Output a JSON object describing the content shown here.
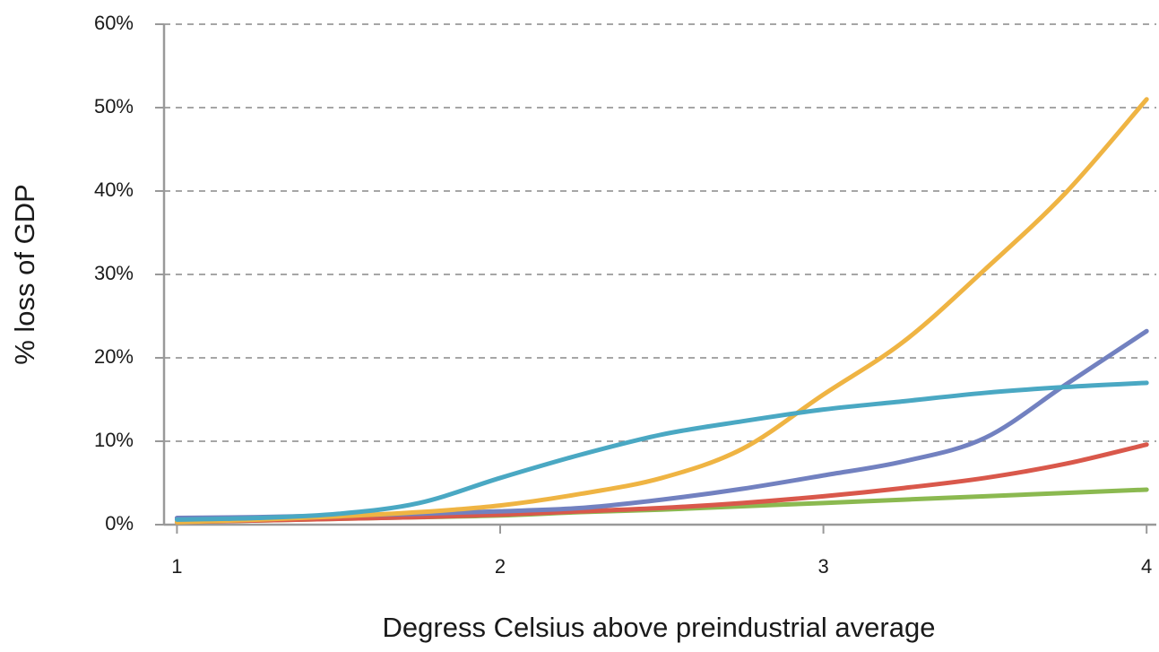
{
  "chart_data": {
    "type": "line",
    "x_label": "Degress Celsius above preindustrial average",
    "y_label": "% loss of GDP",
    "x": [
      1,
      1.25,
      1.5,
      1.75,
      2,
      2.25,
      2.5,
      2.75,
      3,
      3.25,
      3.5,
      3.75,
      4
    ],
    "series": [
      {
        "color": "#8bb950",
        "values": [
          0.3,
          0.5,
          0.7,
          0.9,
          1.1,
          1.5,
          1.8,
          2.2,
          2.6,
          3.0,
          3.4,
          3.8,
          4.2
        ]
      },
      {
        "color": "#d9584b",
        "values": [
          0.3,
          0.5,
          0.7,
          0.9,
          1.2,
          1.6,
          2.0,
          2.6,
          3.4,
          4.4,
          5.6,
          7.3,
          9.6
        ]
      },
      {
        "color": "#7281c0",
        "values": [
          0.8,
          0.9,
          1.1,
          1.3,
          1.6,
          2.0,
          3.0,
          4.3,
          5.9,
          7.6,
          10.4,
          16.8,
          23.2
        ]
      },
      {
        "color": "#efb443",
        "values": [
          0.3,
          0.6,
          1.0,
          1.5,
          2.3,
          3.7,
          5.6,
          9.1,
          15.6,
          22.0,
          30.6,
          39.8,
          51.0
        ]
      },
      {
        "color": "#4aa8c3",
        "values": [
          0.6,
          0.8,
          1.3,
          2.6,
          5.6,
          8.4,
          10.8,
          12.4,
          13.8,
          14.8,
          15.8,
          16.5,
          17.0
        ]
      }
    ],
    "xlim": [
      0.96,
      4.03
    ],
    "xticks": [
      1,
      2,
      3,
      4
    ],
    "ylim": [
      0,
      60
    ],
    "yticks": [
      {
        "value": 0,
        "label": "0%"
      },
      {
        "value": 10,
        "label": "10%"
      },
      {
        "value": 20,
        "label": "20%"
      },
      {
        "value": 30,
        "label": "30%"
      },
      {
        "value": 40,
        "label": "40%"
      },
      {
        "value": 50,
        "label": "50%"
      },
      {
        "value": 60,
        "label": "60%"
      }
    ],
    "grid": true
  }
}
